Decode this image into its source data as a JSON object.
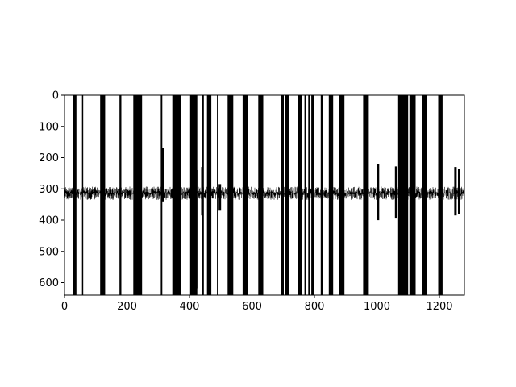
{
  "chart_data": {
    "type": "line",
    "title": "",
    "xlabel": "",
    "ylabel": "",
    "xlim": [
      0,
      1280
    ],
    "ylim": [
      640,
      0
    ],
    "y_axis_inverted": true,
    "grid": false,
    "legend": "none",
    "x_ticks": [
      "0",
      "200",
      "400",
      "600",
      "800",
      "1000",
      "1200"
    ],
    "y_ticks": [
      "0",
      "100",
      "200",
      "300",
      "400",
      "500",
      "600"
    ],
    "baseline_band": [
      293,
      335
    ],
    "vertical_bands": [
      [
        27,
        38
      ],
      [
        56,
        60
      ],
      [
        114,
        130
      ],
      [
        176,
        182
      ],
      [
        220,
        248
      ],
      [
        308,
        313
      ],
      [
        345,
        372
      ],
      [
        402,
        425
      ],
      [
        440,
        446
      ],
      [
        456,
        470
      ],
      [
        488,
        490
      ],
      [
        522,
        540
      ],
      [
        570,
        586
      ],
      [
        620,
        636
      ],
      [
        694,
        702
      ],
      [
        706,
        720
      ],
      [
        748,
        760
      ],
      [
        768,
        774
      ],
      [
        780,
        786
      ],
      [
        790,
        800
      ],
      [
        820,
        828
      ],
      [
        846,
        860
      ],
      [
        880,
        896
      ],
      [
        956,
        974
      ],
      [
        1068,
        1100
      ],
      [
        1104,
        1124
      ],
      [
        1144,
        1160
      ],
      [
        1196,
        1210
      ]
    ],
    "spikes": [
      {
        "x": 313,
        "y_min": 170,
        "y_max": 340
      },
      {
        "x": 420,
        "y_min": 240,
        "y_max": 618
      },
      {
        "x": 440,
        "y_min": 230,
        "y_max": 385
      },
      {
        "x": 496,
        "y_min": 285,
        "y_max": 370
      },
      {
        "x": 712,
        "y_min": 215,
        "y_max": 345
      },
      {
        "x": 1002,
        "y_min": 220,
        "y_max": 400
      },
      {
        "x": 1060,
        "y_min": 228,
        "y_max": 395
      },
      {
        "x": 1250,
        "y_min": 230,
        "y_max": 385
      },
      {
        "x": 1262,
        "y_min": 235,
        "y_max": 380
      }
    ]
  },
  "colors": {
    "line": "#000000",
    "background": "#ffffff"
  }
}
